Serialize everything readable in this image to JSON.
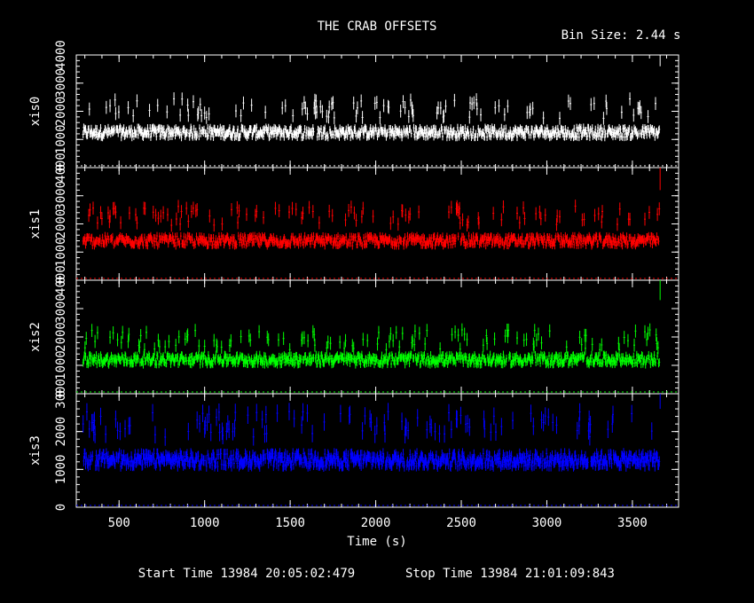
{
  "title": "THE CRAB OFFSETS",
  "bin_label": "Bin Size: 2.44 s",
  "footer": {
    "start": "Start Time 13984 20:05:02:479",
    "stop": "Stop Time 13984 21:01:09:843"
  },
  "chart_data": {
    "type": "scatter",
    "xlabel": "Time (s)",
    "xlim": [
      250,
      3770
    ],
    "xticks": [
      500,
      1000,
      1500,
      2000,
      2500,
      3000,
      3500
    ],
    "series_x_range": [
      290,
      3660
    ],
    "bin_size_s": 2.44,
    "series": [
      {
        "name": "xis0",
        "color": "#ffffff",
        "ylim": [
          0,
          4000
        ],
        "yticks": [
          0,
          1000,
          2000,
          3000,
          4000
        ],
        "baseline": 1250,
        "high_points": 2100,
        "last_value": 4200
      },
      {
        "name": "xis1",
        "color": "#ff0000",
        "ylim": [
          0,
          4000
        ],
        "yticks": [
          0,
          1000,
          2000,
          3000,
          4000
        ],
        "baseline": 1400,
        "high_points": 2300,
        "last_value": 3800
      },
      {
        "name": "xis2",
        "color": "#00ff00",
        "ylim": [
          0,
          4000
        ],
        "yticks": [
          0,
          1000,
          2000,
          3000,
          4000
        ],
        "baseline": 1200,
        "high_points": 1900,
        "last_value": 3900
      },
      {
        "name": "xis3",
        "color": "#0000ff",
        "ylim": [
          0,
          3000
        ],
        "yticks": [
          0,
          1000,
          2000,
          3000
        ],
        "baseline": 1250,
        "high_points": 2200,
        "last_value": 3200
      }
    ]
  }
}
